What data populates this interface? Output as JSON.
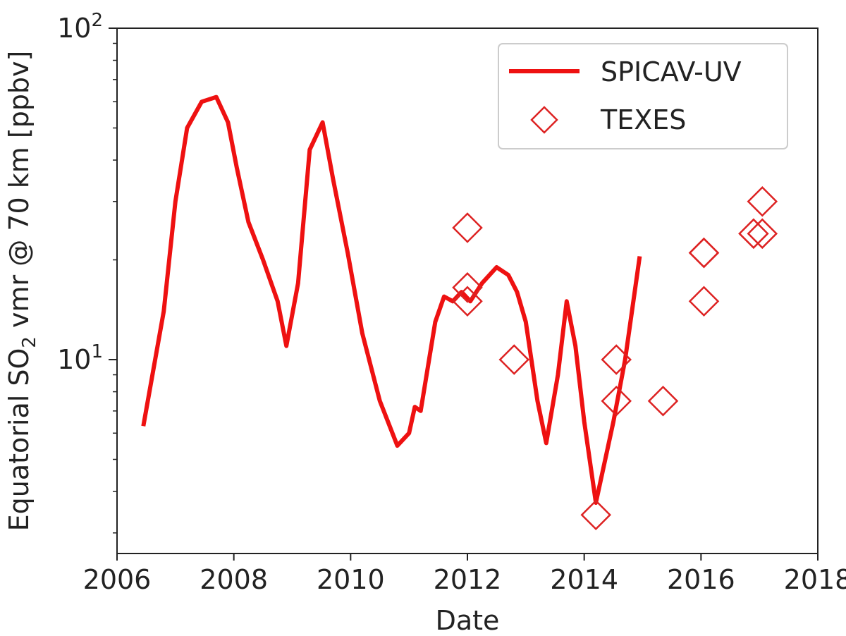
{
  "chart_data": {
    "type": "line",
    "title": "",
    "xlabel": "Date",
    "ylabel": {
      "prefix": "Equatorial SO",
      "subscript": "2",
      "suffix": " vmr @ 70 km [ppbv]"
    },
    "xlim": [
      2006,
      2018
    ],
    "ylim": [
      2.6,
      100
    ],
    "yscale": "log",
    "grid": false,
    "legend_position": "top-right",
    "x_ticks": [
      {
        "value": 2006,
        "label": "2006"
      },
      {
        "value": 2008,
        "label": "2008"
      },
      {
        "value": 2010,
        "label": "2010"
      },
      {
        "value": 2012,
        "label": "2012"
      },
      {
        "value": 2014,
        "label": "2014"
      },
      {
        "value": 2016,
        "label": "2016"
      },
      {
        "value": 2018,
        "label": "2018"
      }
    ],
    "y_ticks": [
      {
        "value": 10,
        "base": "10",
        "exp": "1"
      },
      {
        "value": 100,
        "base": "10",
        "exp": "2"
      }
    ],
    "y_minor_ticks": [
      3,
      4,
      5,
      6,
      7,
      8,
      9,
      20,
      30,
      40,
      50,
      60,
      70,
      80,
      90
    ],
    "series": [
      {
        "name": "SPICAV-UV",
        "style": "line",
        "color": "#ee1111",
        "points": [
          [
            2006.45,
            6.3
          ],
          [
            2006.8,
            14
          ],
          [
            2007.0,
            30
          ],
          [
            2007.2,
            50
          ],
          [
            2007.45,
            60
          ],
          [
            2007.7,
            62
          ],
          [
            2007.9,
            52
          ],
          [
            2008.05,
            38
          ],
          [
            2008.25,
            26
          ],
          [
            2008.5,
            20
          ],
          [
            2008.75,
            15
          ],
          [
            2008.9,
            11
          ],
          [
            2009.1,
            17
          ],
          [
            2009.3,
            43
          ],
          [
            2009.52,
            52
          ],
          [
            2009.7,
            35
          ],
          [
            2009.95,
            21
          ],
          [
            2010.2,
            12
          ],
          [
            2010.5,
            7.5
          ],
          [
            2010.8,
            5.5
          ],
          [
            2011.0,
            6.0
          ],
          [
            2011.1,
            7.2
          ],
          [
            2011.2,
            7.0
          ],
          [
            2011.45,
            13
          ],
          [
            2011.6,
            15.5
          ],
          [
            2011.75,
            15.0
          ],
          [
            2011.9,
            16.0
          ],
          [
            2012.05,
            15.0
          ],
          [
            2012.25,
            17
          ],
          [
            2012.5,
            19
          ],
          [
            2012.7,
            18
          ],
          [
            2012.85,
            16
          ],
          [
            2013.0,
            13
          ],
          [
            2013.2,
            7.5
          ],
          [
            2013.35,
            5.6
          ],
          [
            2013.55,
            9
          ],
          [
            2013.7,
            15
          ],
          [
            2013.85,
            11
          ],
          [
            2014.0,
            6.5
          ],
          [
            2014.2,
            3.7
          ],
          [
            2014.5,
            6.5
          ],
          [
            2014.7,
            10
          ],
          [
            2014.95,
            20.5
          ]
        ]
      },
      {
        "name": "TEXES",
        "style": "marker",
        "marker": "diamond",
        "color": "#dd2222",
        "points": [
          [
            2012.0,
            25
          ],
          [
            2012.0,
            16.5
          ],
          [
            2012.0,
            15.0
          ],
          [
            2012.8,
            10
          ],
          [
            2014.2,
            3.4
          ],
          [
            2014.55,
            10
          ],
          [
            2014.55,
            7.5
          ],
          [
            2015.35,
            7.5
          ],
          [
            2016.05,
            21
          ],
          [
            2016.05,
            21
          ],
          [
            2016.05,
            15
          ],
          [
            2016.9,
            24
          ],
          [
            2017.05,
            30
          ],
          [
            2017.05,
            24
          ]
        ]
      }
    ]
  }
}
